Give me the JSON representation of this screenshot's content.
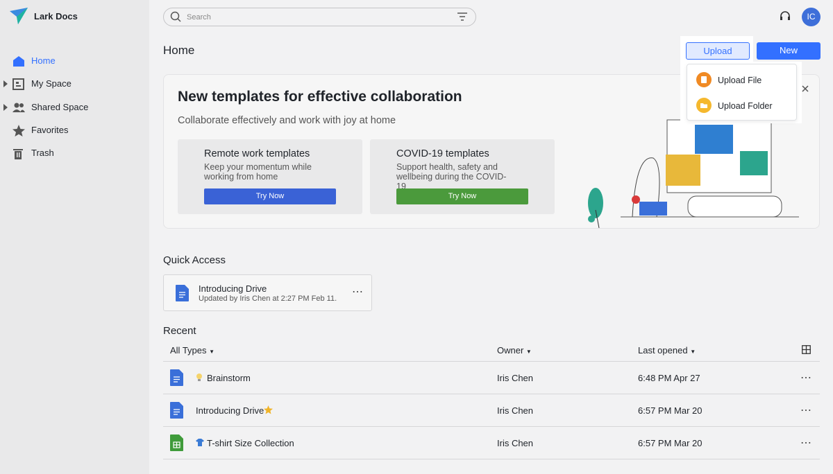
{
  "app": {
    "name": "Lark Docs",
    "search_placeholder": "Search",
    "avatar": "IC"
  },
  "nav": [
    "Home",
    "My Space",
    "Shared Space",
    "Favorites",
    "Trash"
  ],
  "header": {
    "title": "Home",
    "upload": "Upload",
    "new": "New"
  },
  "upload_menu": [
    "Upload File",
    "Upload Folder"
  ],
  "banner": {
    "title": "New templates for effective collaboration",
    "subtitle": "Collaborate effectively and work with joy at home",
    "cards": [
      {
        "title": "Remote work templates",
        "description": "Keep your momentum while working from home",
        "button": "Try Now"
      },
      {
        "title": "COVID-19 templates",
        "description": "Support health, safety and wellbeing during the COVID-19",
        "button": "Try Now"
      }
    ]
  },
  "quick_access": {
    "title": "Quick Access",
    "items": [
      {
        "name": "Introducing Drive",
        "updated": "Updated by Iris Chen at 2:27 PM Feb 11."
      }
    ]
  },
  "recent": {
    "title": "Recent",
    "columns": [
      "All Types",
      "Owner",
      "Last opened"
    ],
    "rows": [
      {
        "name": "Brainstorm",
        "owner": "Iris Chen",
        "last_opened": "6:48 PM Apr 27"
      },
      {
        "name": "Introducing Drive",
        "owner": "Iris Chen",
        "last_opened": "6:57 PM Mar 20"
      },
      {
        "name": "T-shirt Size Collection",
        "owner": "Iris Chen",
        "last_opened": "6:57 PM Mar 20"
      }
    ]
  }
}
